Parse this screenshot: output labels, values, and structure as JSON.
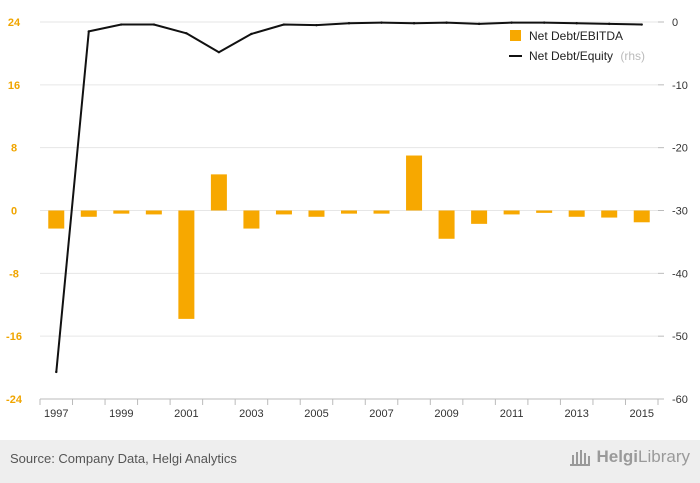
{
  "chart_data": {
    "type": "bar+line",
    "categories": [
      "1997",
      "1998",
      "1999",
      "2000",
      "2001",
      "2002",
      "2003",
      "2004",
      "2005",
      "2006",
      "2007",
      "2008",
      "2009",
      "2010",
      "2011",
      "2012",
      "2013",
      "2014",
      "2015"
    ],
    "x_tick_labels": [
      "1997",
      "1999",
      "2001",
      "2003",
      "2005",
      "2007",
      "2009",
      "2011",
      "2013",
      "2015"
    ],
    "left_axis": {
      "ylim": [
        -24,
        24
      ],
      "ticks": [
        "24",
        "16",
        "8",
        "0",
        "-8",
        "-16",
        "-24"
      ],
      "tick_values": [
        24,
        16,
        8,
        0,
        -8,
        -16,
        -24
      ]
    },
    "right_axis": {
      "ylim": [
        -60,
        0
      ],
      "ticks": [
        "0",
        "-10",
        "-20",
        "-30",
        "-40",
        "-50",
        "-60"
      ],
      "tick_values": [
        0,
        -10,
        -20,
        -30,
        -40,
        -50,
        -60
      ]
    },
    "series": [
      {
        "name": "Net Debt/EBITDA",
        "kind": "bar",
        "axis": "left",
        "color": "#f7a800",
        "values": [
          -2.3,
          -0.8,
          -0.4,
          -0.5,
          -13.8,
          4.6,
          -2.3,
          -0.5,
          -0.8,
          -0.4,
          -0.4,
          7.0,
          -3.6,
          -1.7,
          -0.5,
          -0.3,
          -0.8,
          -0.9,
          -1.5
        ]
      },
      {
        "name": "Net Debt/Equity",
        "suffix": "(rhs)",
        "kind": "line",
        "axis": "right",
        "color": "#111111",
        "values": [
          -55.7,
          -1.5,
          -0.4,
          -0.4,
          -1.8,
          -4.8,
          -1.9,
          -0.4,
          -0.5,
          -0.2,
          -0.1,
          -0.2,
          -0.1,
          -0.3,
          -0.1,
          -0.1,
          -0.2,
          -0.3,
          -0.4
        ]
      }
    ],
    "grid": true,
    "legend": "top-right"
  },
  "footer": {
    "source": "Source: Company Data, Helgi Analytics",
    "brand_prefix": "Helgi",
    "brand_suffix": "Library"
  },
  "colors": {
    "left_tick": "#f0a500",
    "grid": "#e6e6e6",
    "axis": "#bbbbbb",
    "tick_text": "#333333"
  }
}
